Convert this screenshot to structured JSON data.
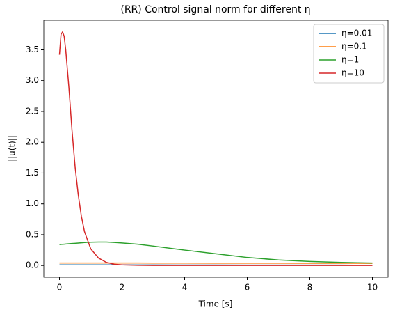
{
  "chart_data": {
    "type": "line",
    "title": "(RR) Control signal norm for different η",
    "xlabel": "Time [s]",
    "ylabel": "||u(t)||",
    "x": [
      0,
      0.05,
      0.1,
      0.15,
      0.2,
      0.3,
      0.4,
      0.5,
      0.6,
      0.7,
      0.8,
      1,
      1.25,
      1.5,
      1.75,
      2,
      2.5,
      3,
      4,
      5,
      6,
      7,
      8,
      9,
      10
    ],
    "series": [
      {
        "name": "η=0.01",
        "color": "#1f77b4",
        "values": [
          0.01,
          0.01,
          0.01,
          0.01,
          0.01,
          0.01,
          0.01,
          0.01,
          0.01,
          0.01,
          0.01,
          0.01,
          0.01,
          0.01,
          0.01,
          0.01,
          0.009,
          0.009,
          0.008,
          0.008,
          0.007,
          0.007,
          0.006,
          0.006,
          0.005
        ]
      },
      {
        "name": "η=0.1",
        "color": "#ff7f0e",
        "values": [
          0.04,
          0.04,
          0.04,
          0.04,
          0.04,
          0.04,
          0.04,
          0.04,
          0.04,
          0.04,
          0.04,
          0.04,
          0.04,
          0.04,
          0.04,
          0.04,
          0.04,
          0.039,
          0.039,
          0.038,
          0.037,
          0.037,
          0.036,
          0.036,
          0.035
        ]
      },
      {
        "name": "η=1",
        "color": "#2ca02c",
        "values": [
          0.34,
          0.342,
          0.344,
          0.346,
          0.348,
          0.352,
          0.356,
          0.36,
          0.364,
          0.368,
          0.372,
          0.378,
          0.38,
          0.38,
          0.374,
          0.365,
          0.345,
          0.315,
          0.25,
          0.19,
          0.13,
          0.09,
          0.065,
          0.05,
          0.04
        ]
      },
      {
        "name": "η=10",
        "color": "#d62728",
        "values": [
          3.42,
          3.75,
          3.79,
          3.72,
          3.5,
          2.9,
          2.2,
          1.6,
          1.15,
          0.8,
          0.55,
          0.27,
          0.12,
          0.05,
          0.02,
          0.01,
          0.003,
          0.001,
          0,
          0,
          0,
          0,
          0,
          0,
          0
        ]
      }
    ],
    "xlim": [
      -0.5,
      10.5
    ],
    "ylim": [
      -0.19,
      3.98
    ],
    "xticks": [
      0,
      2,
      4,
      6,
      8,
      10
    ],
    "yticks": [
      {
        "value": 0,
        "label": "0.0"
      },
      0.5,
      {
        "value": 1,
        "label": "1.0"
      },
      1.5,
      {
        "value": 2,
        "label": "2.0"
      },
      2.5,
      {
        "value": 3,
        "label": "3.0"
      },
      3.5
    ],
    "legend": "upper right"
  }
}
